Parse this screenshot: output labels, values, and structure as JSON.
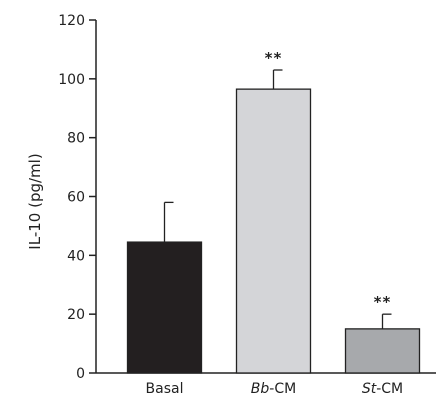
{
  "chart_data": {
    "type": "bar",
    "title": "",
    "xlabel": "",
    "ylabel": "IL-10 (pg/ml)",
    "ylim": [
      0,
      120
    ],
    "yticks": [
      0,
      20,
      40,
      60,
      80,
      100,
      120
    ],
    "grid": false,
    "legend": "none",
    "categories": [
      {
        "italic": "",
        "plain": "Basal"
      },
      {
        "italic": "Bb",
        "plain": "-CM"
      },
      {
        "italic": "St",
        "plain": "-CM"
      }
    ],
    "values": [
      44.5,
      96.5,
      15
    ],
    "errors": [
      13.5,
      6.5,
      5
    ],
    "annotations": [
      "",
      "**",
      "**"
    ],
    "colors": [
      "#231f20",
      "#d4d5d8",
      "#a7a9ac"
    ],
    "axis_color": "#222222"
  }
}
